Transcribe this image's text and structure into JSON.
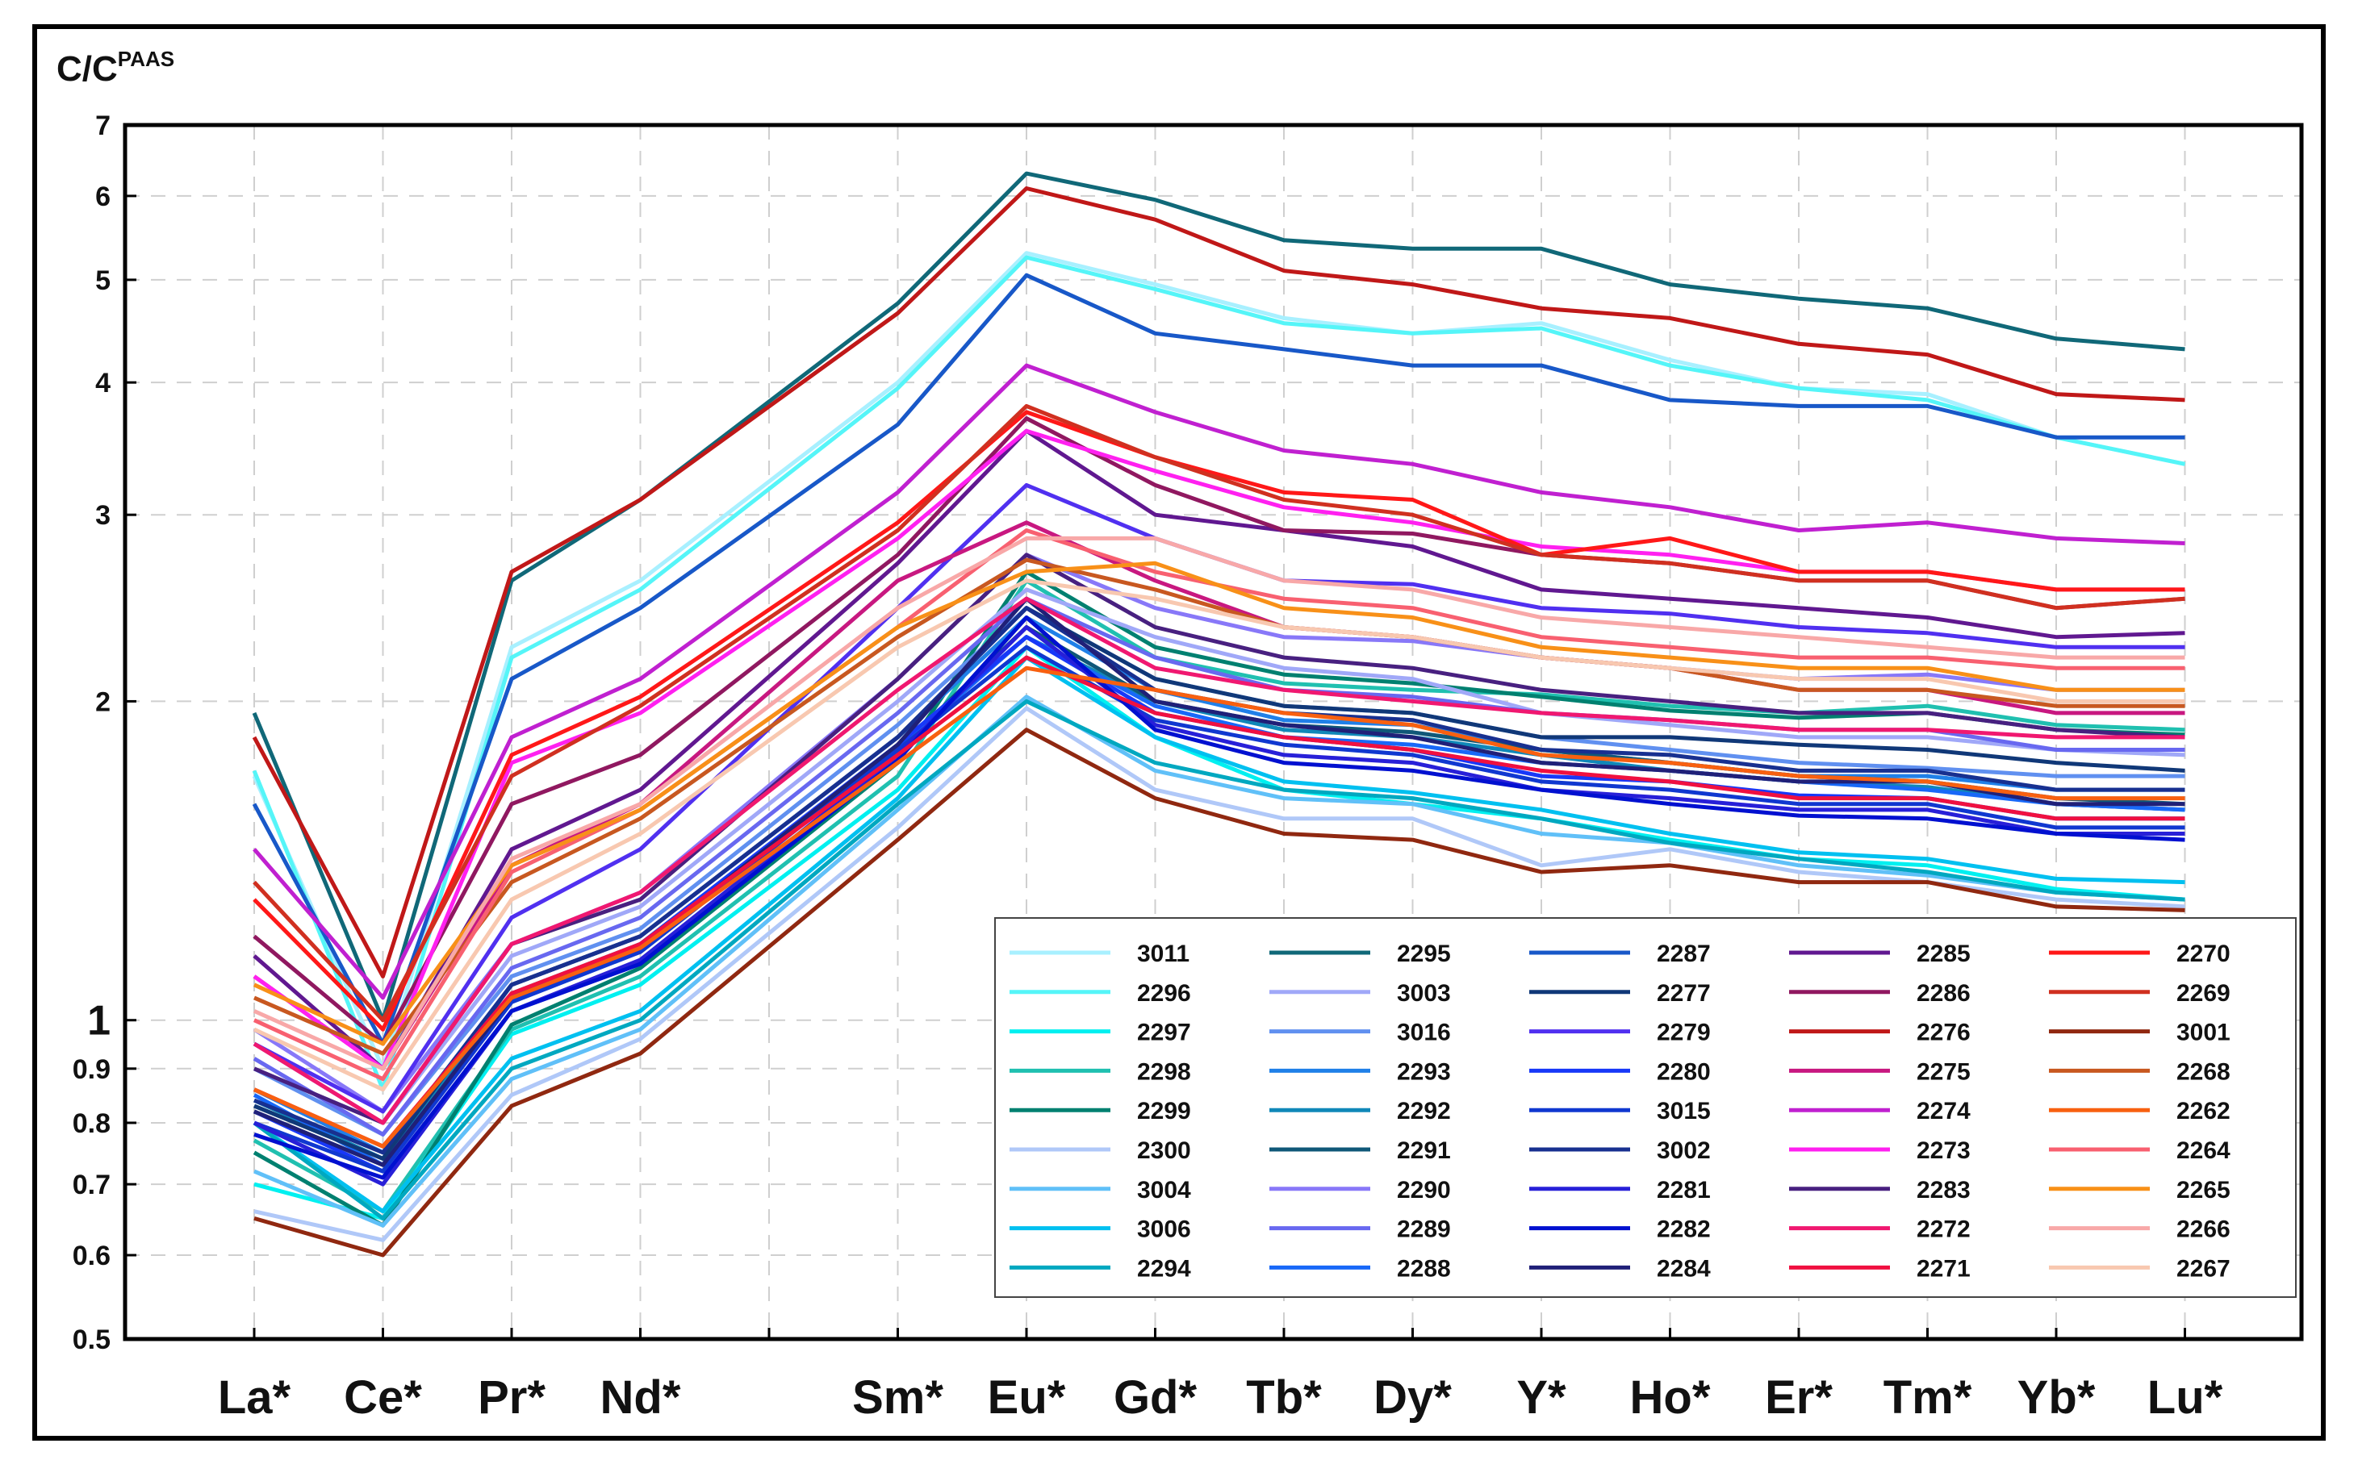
{
  "chart_data": {
    "type": "line",
    "title": "",
    "ylabel_main": "C/C",
    "ylabel_sup": "PAAS",
    "xlabel": "",
    "yscale": "log",
    "ylim": [
      0.5,
      7
    ],
    "grid": true,
    "legend_position": "bottom-right",
    "categories": [
      "La*",
      "Ce*",
      "Pr*",
      "Nd*",
      "",
      "Sm*",
      "Eu*",
      "Gd*",
      "Tb*",
      "Dy*",
      "Y*",
      "Ho*",
      "Er*",
      "Tm*",
      "Yb*",
      "Lu*"
    ],
    "y_ticks": [
      {
        "value": 0.5,
        "label": "0.5"
      },
      {
        "value": 0.6,
        "label": "0.6"
      },
      {
        "value": 0.7,
        "label": "0.7"
      },
      {
        "value": 0.8,
        "label": "0.8"
      },
      {
        "value": 0.9,
        "label": "0.9"
      },
      {
        "value": 1,
        "label": "1"
      },
      {
        "value": 2,
        "label": "2"
      },
      {
        "value": 3,
        "label": "3"
      },
      {
        "value": 4,
        "label": "4"
      },
      {
        "value": 5,
        "label": "5"
      },
      {
        "value": 6,
        "label": "6"
      },
      {
        "value": 7,
        "label": "7"
      }
    ],
    "series": [
      {
        "name": "3011",
        "color": "#a8f0ff",
        "values": [
          1.7,
          0.9,
          2.25,
          2.6,
          null,
          4.0,
          5.3,
          4.95,
          4.6,
          4.45,
          4.55,
          4.2,
          3.95,
          3.9,
          3.55,
          3.35
        ]
      },
      {
        "name": "2296",
        "color": "#55f5f8",
        "values": [
          1.72,
          0.86,
          2.2,
          2.55,
          null,
          3.95,
          5.25,
          4.9,
          4.55,
          4.45,
          4.5,
          4.15,
          3.95,
          3.85,
          3.55,
          3.35
        ]
      },
      {
        "name": "2297",
        "color": "#00f0f0",
        "values": [
          0.7,
          0.65,
          0.97,
          1.08,
          null,
          1.65,
          2.25,
          1.85,
          1.65,
          1.6,
          1.55,
          1.48,
          1.42,
          1.4,
          1.33,
          1.3
        ]
      },
      {
        "name": "2298",
        "color": "#20c0b0",
        "values": [
          0.77,
          0.66,
          0.98,
          1.1,
          null,
          1.7,
          2.6,
          2.2,
          2.08,
          2.05,
          2.03,
          1.98,
          1.95,
          1.98,
          1.9,
          1.88
        ]
      },
      {
        "name": "2299",
        "color": "#008070",
        "values": [
          0.75,
          0.64,
          0.99,
          1.12,
          null,
          1.75,
          2.65,
          2.25,
          2.12,
          2.08,
          2.02,
          1.96,
          1.93,
          1.95,
          1.88,
          1.86
        ]
      },
      {
        "name": "2300",
        "color": "#b0c8f8",
        "values": [
          0.66,
          0.62,
          0.85,
          0.96,
          null,
          1.52,
          1.97,
          1.65,
          1.55,
          1.55,
          1.4,
          1.45,
          1.38,
          1.35,
          1.3,
          1.28
        ]
      },
      {
        "name": "3004",
        "color": "#60c0f8",
        "values": [
          0.72,
          0.64,
          0.88,
          0.98,
          null,
          1.58,
          2.02,
          1.72,
          1.62,
          1.6,
          1.5,
          1.47,
          1.4,
          1.37,
          1.32,
          1.3
        ]
      },
      {
        "name": "3006",
        "color": "#00c0f0",
        "values": [
          0.8,
          0.66,
          0.92,
          1.02,
          null,
          1.62,
          2.2,
          1.85,
          1.68,
          1.64,
          1.58,
          1.5,
          1.44,
          1.42,
          1.36,
          1.35
        ]
      },
      {
        "name": "2294",
        "color": "#00a8c0",
        "values": [
          0.8,
          0.65,
          0.9,
          1.0,
          null,
          1.6,
          2.0,
          1.75,
          1.65,
          1.62,
          1.55,
          1.47,
          1.42,
          1.38,
          1.32,
          1.3
        ]
      },
      {
        "name": "2295",
        "color": "#106878",
        "values": [
          1.95,
          1.0,
          2.6,
          3.1,
          null,
          4.75,
          6.3,
          5.95,
          5.45,
          5.35,
          5.35,
          4.95,
          4.8,
          4.7,
          4.4,
          4.3
        ]
      },
      {
        "name": "3003",
        "color": "#a0a8f8",
        "values": [
          0.95,
          0.8,
          1.15,
          1.28,
          null,
          2.0,
          2.55,
          2.3,
          2.15,
          2.1,
          1.95,
          1.9,
          1.85,
          1.85,
          1.8,
          1.78
        ]
      },
      {
        "name": "3016",
        "color": "#6090f0",
        "values": [
          0.9,
          0.78,
          1.1,
          1.22,
          null,
          1.9,
          2.45,
          2.1,
          1.98,
          1.95,
          1.85,
          1.8,
          1.75,
          1.73,
          1.7,
          1.7
        ]
      },
      {
        "name": "2293",
        "color": "#2080e8",
        "values": [
          0.86,
          0.75,
          1.08,
          1.2,
          null,
          1.85,
          2.4,
          2.05,
          1.92,
          1.9,
          1.8,
          1.75,
          1.7,
          1.7,
          1.65,
          1.65
        ]
      },
      {
        "name": "2292",
        "color": "#1088b8",
        "values": [
          0.84,
          0.74,
          1.06,
          1.18,
          null,
          1.82,
          2.3,
          2.0,
          1.88,
          1.85,
          1.78,
          1.72,
          1.68,
          1.66,
          1.6,
          1.58
        ]
      },
      {
        "name": "2291",
        "color": "#105878",
        "values": [
          0.82,
          0.73,
          1.05,
          1.16,
          null,
          1.8,
          2.35,
          2.0,
          1.9,
          1.87,
          1.8,
          1.75,
          1.7,
          1.68,
          1.62,
          1.6
        ]
      },
      {
        "name": "2290",
        "color": "#8878f8",
        "values": [
          0.98,
          0.82,
          1.18,
          1.32,
          null,
          2.1,
          2.75,
          2.45,
          2.3,
          2.28,
          2.2,
          2.15,
          2.1,
          2.12,
          2.05,
          2.05
        ]
      },
      {
        "name": "2289",
        "color": "#6868f0",
        "values": [
          0.92,
          0.78,
          1.12,
          1.25,
          null,
          1.95,
          2.5,
          2.2,
          2.05,
          2.02,
          1.95,
          1.92,
          1.88,
          1.88,
          1.8,
          1.8
        ]
      },
      {
        "name": "2288",
        "color": "#1868f8",
        "values": [
          0.85,
          0.73,
          1.05,
          1.17,
          null,
          1.8,
          2.3,
          1.98,
          1.85,
          1.82,
          1.75,
          1.72,
          1.68,
          1.65,
          1.6,
          1.58
        ]
      },
      {
        "name": "2287",
        "color": "#1858c8",
        "values": [
          1.6,
          0.95,
          2.1,
          2.45,
          null,
          3.65,
          5.05,
          4.45,
          4.3,
          4.15,
          4.15,
          3.85,
          3.8,
          3.8,
          3.55,
          3.55
        ]
      },
      {
        "name": "2277",
        "color": "#103878",
        "values": [
          0.83,
          0.74,
          1.08,
          1.2,
          null,
          1.85,
          2.45,
          2.1,
          1.98,
          1.95,
          1.85,
          1.85,
          1.82,
          1.8,
          1.75,
          1.72
        ]
      },
      {
        "name": "2279",
        "color": "#5030f0",
        "values": [
          0.95,
          0.82,
          1.25,
          1.45,
          null,
          2.45,
          3.2,
          2.85,
          2.6,
          2.58,
          2.45,
          2.42,
          2.35,
          2.32,
          2.25,
          2.25
        ]
      },
      {
        "name": "2280",
        "color": "#1838f8",
        "values": [
          0.82,
          0.72,
          1.05,
          1.18,
          null,
          1.82,
          2.3,
          1.95,
          1.85,
          1.8,
          1.7,
          1.68,
          1.63,
          1.62,
          1.55,
          1.55
        ]
      },
      {
        "name": "3015",
        "color": "#1038d0",
        "values": [
          0.8,
          0.72,
          1.04,
          1.16,
          null,
          1.8,
          2.25,
          1.92,
          1.82,
          1.78,
          1.68,
          1.65,
          1.6,
          1.6,
          1.52,
          1.52
        ]
      },
      {
        "name": "3002",
        "color": "#183090",
        "values": [
          0.84,
          0.75,
          1.08,
          1.2,
          null,
          1.85,
          2.45,
          2.05,
          1.95,
          1.92,
          1.8,
          1.78,
          1.72,
          1.72,
          1.65,
          1.65
        ]
      },
      {
        "name": "2281",
        "color": "#2820d8",
        "values": [
          0.8,
          0.7,
          1.02,
          1.14,
          null,
          1.78,
          2.35,
          1.9,
          1.78,
          1.75,
          1.65,
          1.62,
          1.58,
          1.58,
          1.5,
          1.5
        ]
      },
      {
        "name": "2282",
        "color": "#0010d0",
        "values": [
          0.78,
          0.71,
          1.02,
          1.13,
          null,
          1.76,
          2.4,
          1.88,
          1.75,
          1.72,
          1.65,
          1.6,
          1.56,
          1.55,
          1.5,
          1.48
        ]
      },
      {
        "name": "2284",
        "color": "#202078",
        "values": [
          0.82,
          0.73,
          1.05,
          1.17,
          null,
          1.82,
          2.5,
          2.0,
          1.9,
          1.85,
          1.75,
          1.72,
          1.68,
          1.68,
          1.6,
          1.6
        ]
      },
      {
        "name": "2285",
        "color": "#601890",
        "values": [
          1.15,
          0.9,
          1.45,
          1.65,
          null,
          2.7,
          3.6,
          3.0,
          2.9,
          2.8,
          2.55,
          2.5,
          2.45,
          2.4,
          2.3,
          2.32
        ]
      },
      {
        "name": "2286",
        "color": "#901860",
        "values": [
          1.2,
          0.95,
          1.6,
          1.78,
          null,
          2.75,
          3.7,
          3.2,
          2.9,
          2.88,
          2.75,
          2.7,
          2.6,
          2.6,
          2.45,
          2.5
        ]
      },
      {
        "name": "2276",
        "color": "#c01818",
        "values": [
          1.85,
          1.1,
          2.65,
          3.1,
          null,
          4.65,
          6.1,
          5.7,
          5.1,
          4.95,
          4.7,
          4.6,
          4.35,
          4.25,
          3.9,
          3.85
        ]
      },
      {
        "name": "2275",
        "color": "#c81880",
        "values": [
          1.1,
          0.9,
          1.4,
          1.6,
          null,
          2.6,
          2.95,
          2.6,
          2.35,
          2.3,
          2.2,
          2.15,
          2.05,
          2.05,
          1.95,
          1.95
        ]
      },
      {
        "name": "2274",
        "color": "#c020d0",
        "values": [
          1.45,
          1.05,
          1.85,
          2.1,
          null,
          3.15,
          4.15,
          3.75,
          3.45,
          3.35,
          3.15,
          3.05,
          2.9,
          2.95,
          2.85,
          2.82
        ]
      },
      {
        "name": "2273",
        "color": "#ff20f0",
        "values": [
          1.1,
          0.9,
          1.75,
          1.95,
          null,
          2.85,
          3.6,
          3.3,
          3.05,
          2.95,
          2.8,
          2.75,
          2.65,
          2.65,
          2.55,
          2.55
        ]
      },
      {
        "name": "2283",
        "color": "#482080",
        "values": [
          0.9,
          0.8,
          1.18,
          1.3,
          null,
          2.1,
          2.75,
          2.35,
          2.2,
          2.15,
          2.05,
          2.0,
          1.95,
          1.95,
          1.88,
          1.85
        ]
      },
      {
        "name": "2272",
        "color": "#f01870",
        "values": [
          0.95,
          0.8,
          1.18,
          1.32,
          null,
          2.05,
          2.5,
          2.15,
          2.05,
          2.0,
          1.95,
          1.92,
          1.88,
          1.88,
          1.85,
          1.85
        ]
      },
      {
        "name": "2271",
        "color": "#f01040",
        "values": [
          0.86,
          0.76,
          1.06,
          1.18,
          null,
          1.78,
          2.2,
          1.95,
          1.85,
          1.8,
          1.72,
          1.68,
          1.62,
          1.62,
          1.55,
          1.55
        ]
      },
      {
        "name": "2270",
        "color": "#ff1818",
        "values": [
          1.3,
          0.98,
          1.78,
          2.02,
          null,
          2.95,
          3.75,
          3.4,
          3.15,
          3.1,
          2.75,
          2.85,
          2.65,
          2.65,
          2.55,
          2.55
        ]
      },
      {
        "name": "2269",
        "color": "#d03020",
        "values": [
          1.35,
          1.0,
          1.7,
          1.98,
          null,
          2.9,
          3.8,
          3.4,
          3.1,
          3.0,
          2.75,
          2.7,
          2.6,
          2.6,
          2.45,
          2.5
        ]
      },
      {
        "name": "3001",
        "color": "#902810",
        "values": [
          0.65,
          0.6,
          0.83,
          0.93,
          null,
          1.48,
          1.88,
          1.62,
          1.5,
          1.48,
          1.38,
          1.4,
          1.35,
          1.35,
          1.28,
          1.27
        ]
      },
      {
        "name": "2268",
        "color": "#c85820",
        "values": [
          1.05,
          0.93,
          1.35,
          1.55,
          null,
          2.3,
          2.72,
          2.55,
          2.35,
          2.3,
          2.2,
          2.15,
          2.05,
          2.05,
          1.98,
          1.98
        ]
      },
      {
        "name": "2262",
        "color": "#f86010",
        "values": [
          0.86,
          0.76,
          1.05,
          1.17,
          null,
          1.75,
          2.15,
          2.05,
          1.95,
          1.9,
          1.78,
          1.75,
          1.7,
          1.68,
          1.62,
          1.62
        ]
      },
      {
        "name": "2264",
        "color": "#f86070",
        "values": [
          1.0,
          0.88,
          1.38,
          1.58,
          null,
          2.35,
          2.9,
          2.65,
          2.5,
          2.45,
          2.3,
          2.25,
          2.2,
          2.2,
          2.15,
          2.15
        ]
      },
      {
        "name": "2265",
        "color": "#f89018",
        "values": [
          1.08,
          0.95,
          1.4,
          1.58,
          null,
          2.35,
          2.65,
          2.7,
          2.45,
          2.4,
          2.25,
          2.2,
          2.15,
          2.15,
          2.05,
          2.05
        ]
      },
      {
        "name": "2266",
        "color": "#f8a8a8",
        "values": [
          1.02,
          0.9,
          1.42,
          1.6,
          null,
          2.45,
          2.85,
          2.85,
          2.6,
          2.55,
          2.4,
          2.35,
          2.3,
          2.25,
          2.2,
          2.2
        ]
      },
      {
        "name": "2267",
        "color": "#f8c8b0",
        "values": [
          0.98,
          0.86,
          1.3,
          1.5,
          null,
          2.25,
          2.6,
          2.5,
          2.35,
          2.3,
          2.2,
          2.15,
          2.1,
          2.1,
          2.0,
          2.0
        ]
      }
    ]
  }
}
